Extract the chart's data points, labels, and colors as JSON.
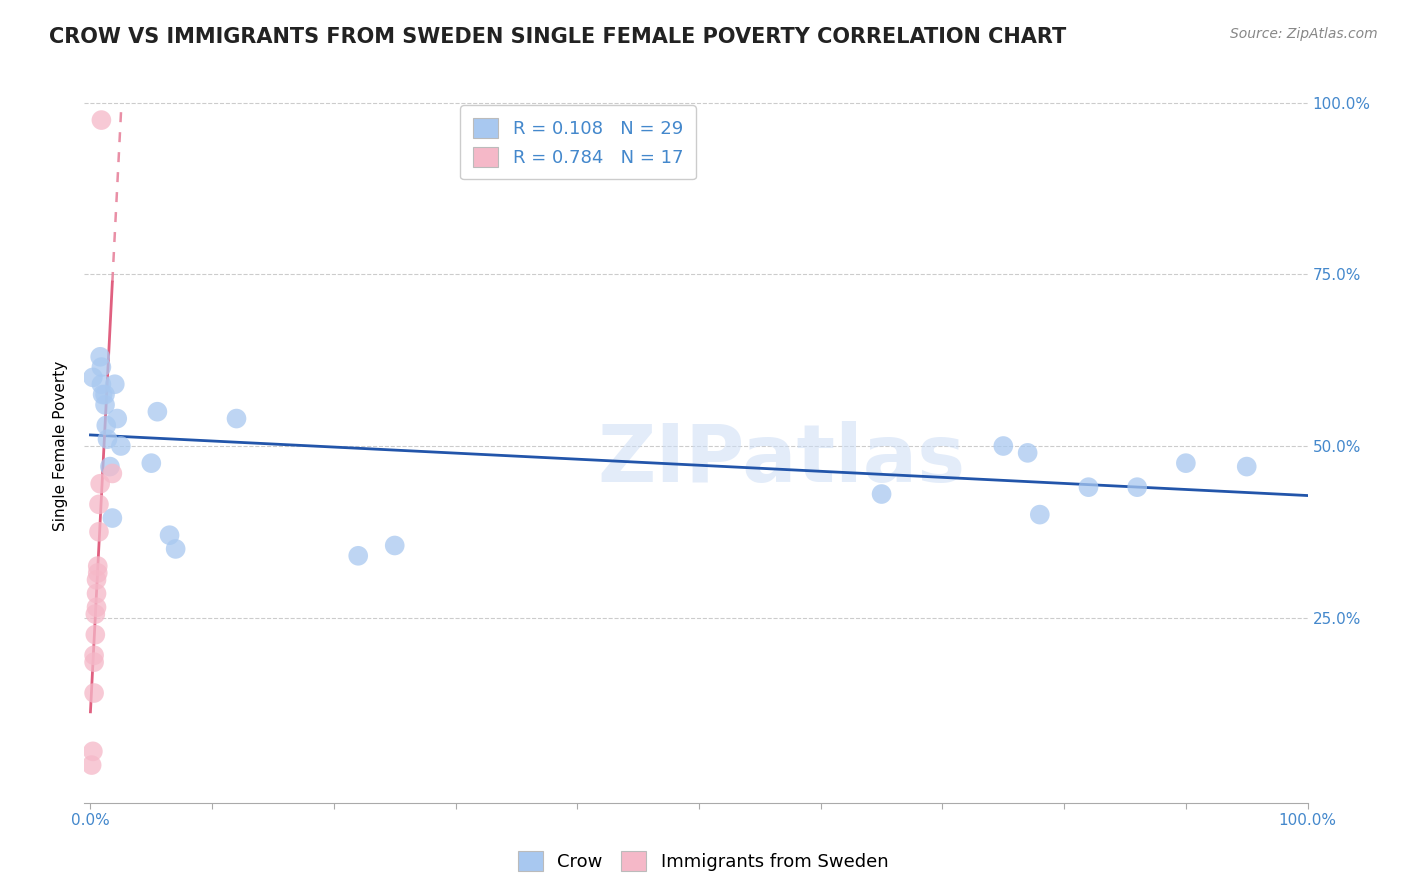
{
  "title": "CROW VS IMMIGRANTS FROM SWEDEN SINGLE FEMALE POVERTY CORRELATION CHART",
  "source": "Source: ZipAtlas.com",
  "ylabel": "Single Female Poverty",
  "watermark": "ZIPatlas",
  "xlim": [
    -0.005,
    1.0
  ],
  "ylim": [
    -0.02,
    1.02
  ],
  "crow_color": "#a8c8f0",
  "sweden_color": "#f5b8c8",
  "crow_line_color": "#2255aa",
  "sweden_line_color": "#e06080",
  "crow_R": 0.108,
  "crow_N": 29,
  "sweden_R": 0.784,
  "sweden_N": 17,
  "crow_x": [
    0.002,
    0.008,
    0.009,
    0.009,
    0.01,
    0.012,
    0.012,
    0.013,
    0.014,
    0.016,
    0.018,
    0.02,
    0.022,
    0.025,
    0.05,
    0.055,
    0.065,
    0.07,
    0.12,
    0.22,
    0.25,
    0.65,
    0.75,
    0.77,
    0.78,
    0.82,
    0.86,
    0.9,
    0.95
  ],
  "crow_y": [
    0.6,
    0.63,
    0.615,
    0.59,
    0.575,
    0.56,
    0.575,
    0.53,
    0.51,
    0.47,
    0.395,
    0.59,
    0.54,
    0.5,
    0.475,
    0.55,
    0.37,
    0.35,
    0.54,
    0.34,
    0.355,
    0.43,
    0.5,
    0.49,
    0.4,
    0.44,
    0.44,
    0.475,
    0.47
  ],
  "sweden_x": [
    0.001,
    0.002,
    0.003,
    0.003,
    0.003,
    0.004,
    0.004,
    0.005,
    0.005,
    0.005,
    0.006,
    0.006,
    0.007,
    0.007,
    0.008,
    0.009,
    0.018
  ],
  "sweden_y": [
    0.035,
    0.055,
    0.14,
    0.185,
    0.195,
    0.225,
    0.255,
    0.265,
    0.285,
    0.305,
    0.315,
    0.325,
    0.375,
    0.415,
    0.445,
    0.975,
    0.46
  ],
  "axis_tick_color": "#4488cc",
  "grid_color": "#cccccc",
  "title_fontsize": 15,
  "label_fontsize": 11,
  "tick_fontsize": 11,
  "legend_fontsize": 13,
  "source_fontsize": 10
}
